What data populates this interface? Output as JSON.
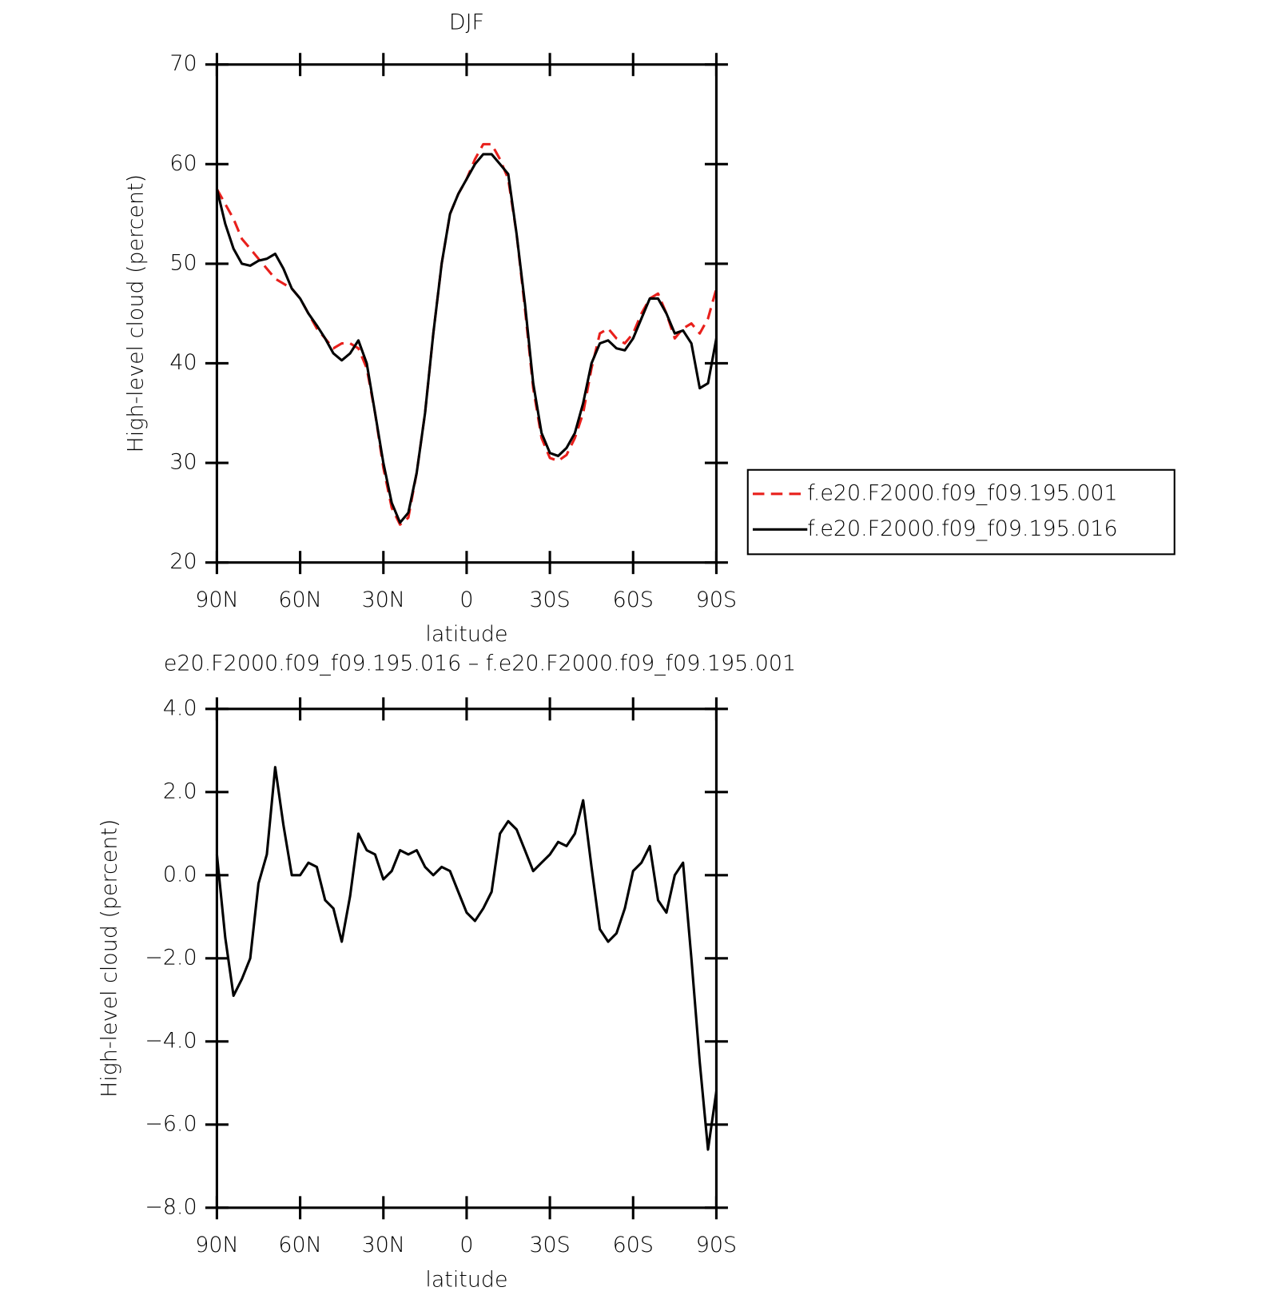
{
  "chart_data": [
    {
      "type": "line",
      "title": "DJF",
      "xlabel": "latitude",
      "ylabel": "High-level cloud (percent)",
      "x": [
        90,
        87,
        84,
        81,
        78,
        75,
        72,
        69,
        66,
        63,
        60,
        57,
        54,
        51,
        48,
        45,
        42,
        39,
        36,
        33,
        30,
        27,
        24,
        21,
        18,
        15,
        12,
        9,
        6,
        3,
        0,
        -3,
        -6,
        -9,
        -12,
        -15,
        -18,
        -21,
        -24,
        -27,
        -30,
        -33,
        -36,
        -39,
        -42,
        -45,
        -48,
        -51,
        -54,
        -57,
        -60,
        -63,
        -66,
        -69,
        -72,
        -75,
        -78,
        -81,
        -84,
        -87,
        -90
      ],
      "xlim": [
        90,
        -90
      ],
      "xticks": [
        {
          "value": 90,
          "label": "90N"
        },
        {
          "value": 60,
          "label": "60N"
        },
        {
          "value": 30,
          "label": "30N"
        },
        0,
        {
          "value": -30,
          "label": "30S"
        },
        {
          "value": -60,
          "label": "60S"
        },
        {
          "value": -90,
          "label": "90S"
        }
      ],
      "ylim": [
        20,
        70
      ],
      "yticks": [
        20,
        30,
        40,
        50,
        60,
        70
      ],
      "legend": true,
      "series": [
        {
          "name": "f.e20.F2000.f09_f09.195.001",
          "color": "#e8201c",
          "style": "dashed",
          "values": [
            57.5,
            56,
            54.5,
            52.5,
            51.5,
            50.5,
            49.5,
            48.5,
            48,
            47.5,
            46.5,
            45,
            43.5,
            42.5,
            41.5,
            42,
            42,
            41.5,
            39.5,
            35,
            29.5,
            25.5,
            23.8,
            24.5,
            29,
            35,
            43,
            50,
            55,
            57,
            58.5,
            60.5,
            62,
            62,
            60.5,
            58.5,
            53,
            45.5,
            37.5,
            32.5,
            30.5,
            30.2,
            30.8,
            32.5,
            35,
            39.5,
            43,
            43.5,
            42.5,
            42,
            43,
            45,
            46.5,
            47,
            45,
            42.5,
            43.5,
            44,
            43,
            44.5,
            47.5
          ]
        },
        {
          "name": "f.e20.F2000.f09_f09.195.016",
          "color": "#000000",
          "style": "solid",
          "values": [
            57.5,
            54,
            51.5,
            50,
            49.8,
            50.3,
            50.5,
            51,
            49.5,
            47.5,
            46.5,
            45,
            43.8,
            42.5,
            41,
            40.3,
            41,
            42.3,
            40,
            35,
            30,
            26,
            24,
            25,
            29,
            35,
            43,
            50,
            55,
            57,
            58.5,
            60,
            61,
            61,
            60,
            59,
            53,
            46,
            38,
            33,
            31,
            30.7,
            31.5,
            33,
            36,
            40,
            42,
            42.3,
            41.5,
            41.3,
            42.5,
            44.5,
            46.5,
            46.5,
            45,
            43,
            43.3,
            42,
            37.5,
            38,
            42.5
          ]
        }
      ]
    },
    {
      "type": "line",
      "title": "e20.F2000.f09_f09.195.016 – f.e20.F2000.f09_f09.195.001",
      "xlabel": "latitude",
      "ylabel": "High-level cloud (percent)",
      "x": [
        90,
        87,
        84,
        81,
        78,
        75,
        72,
        69,
        66,
        63,
        60,
        57,
        54,
        51,
        48,
        45,
        42,
        39,
        36,
        33,
        30,
        27,
        24,
        21,
        18,
        15,
        12,
        9,
        6,
        3,
        0,
        -3,
        -6,
        -9,
        -12,
        -15,
        -18,
        -21,
        -24,
        -27,
        -30,
        -33,
        -36,
        -39,
        -42,
        -45,
        -48,
        -51,
        -54,
        -57,
        -60,
        -63,
        -66,
        -69,
        -72,
        -75,
        -78,
        -81,
        -84,
        -87,
        -90
      ],
      "xlim": [
        90,
        -90
      ],
      "xticks": [
        {
          "value": 90,
          "label": "90N"
        },
        {
          "value": 60,
          "label": "60N"
        },
        {
          "value": 30,
          "label": "30N"
        },
        0,
        {
          "value": -30,
          "label": "30S"
        },
        {
          "value": -60,
          "label": "60S"
        },
        {
          "value": -90,
          "label": "90S"
        }
      ],
      "ylim": [
        -8,
        4
      ],
      "yticks": [
        {
          "value": -8,
          "label": "−8.0"
        },
        {
          "value": -6,
          "label": "−6.0"
        },
        {
          "value": -4,
          "label": "−4.0"
        },
        {
          "value": -2,
          "label": "−2.0"
        },
        {
          "value": 0,
          "label": "0.0"
        },
        {
          "value": 2,
          "label": "2.0"
        },
        {
          "value": 4,
          "label": "4.0"
        }
      ],
      "legend": false,
      "series": [
        {
          "color": "#000000",
          "style": "solid",
          "values": [
            0.5,
            -1.5,
            -2.9,
            -2.5,
            -2.0,
            -0.2,
            0.5,
            2.6,
            1.2,
            0.0,
            0.0,
            0.3,
            0.2,
            -0.6,
            -0.8,
            -1.6,
            -0.5,
            1.0,
            0.6,
            0.5,
            -0.1,
            0.1,
            0.6,
            0.5,
            0.6,
            0.2,
            0.0,
            0.2,
            0.1,
            -0.4,
            -0.9,
            -1.1,
            -0.8,
            -0.4,
            1.0,
            1.3,
            1.1,
            0.6,
            0.1,
            0.3,
            0.5,
            0.8,
            0.7,
            1.0,
            1.8,
            0.2,
            -1.3,
            -1.6,
            -1.4,
            -0.8,
            0.1,
            0.3,
            0.7,
            -0.6,
            -0.9,
            0.0,
            0.3,
            -2.0,
            -4.5,
            -6.6,
            -5.2
          ]
        }
      ]
    }
  ]
}
